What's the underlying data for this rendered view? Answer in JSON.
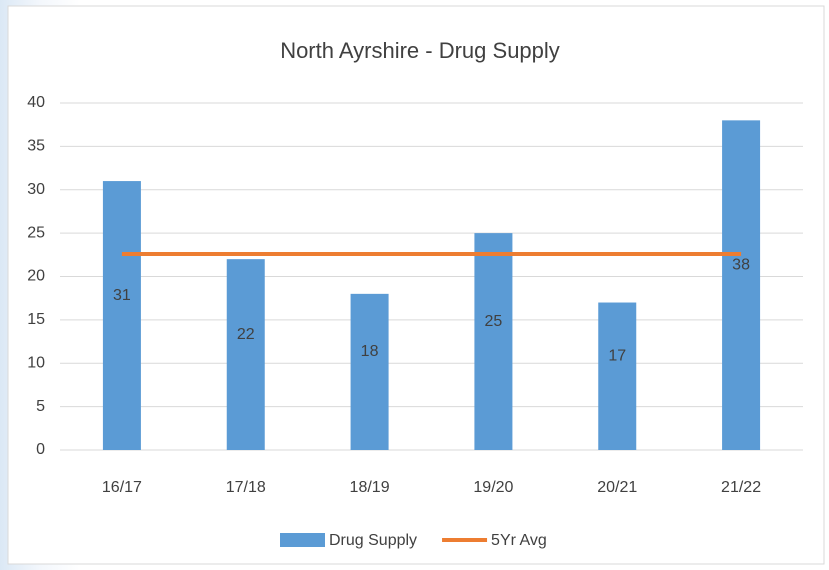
{
  "chart_data": {
    "type": "bar",
    "title": "North Ayrshire - Drug Supply",
    "categories": [
      "16/17",
      "17/18",
      "18/19",
      "19/20",
      "20/21",
      "21/22"
    ],
    "series": [
      {
        "name": "Drug Supply",
        "type": "bar",
        "color": "#5b9bd5",
        "values": [
          31,
          22,
          18,
          25,
          17,
          38
        ]
      },
      {
        "name": "5Yr Avg",
        "type": "line",
        "color": "#ed7d31",
        "values": [
          22.6,
          22.6,
          22.6,
          22.6,
          22.6,
          22.6
        ]
      }
    ],
    "ylim": [
      0,
      40
    ],
    "yticks": [
      0,
      5,
      10,
      15,
      20,
      25,
      30,
      35,
      40
    ],
    "grid": true,
    "legend": "bottom"
  }
}
